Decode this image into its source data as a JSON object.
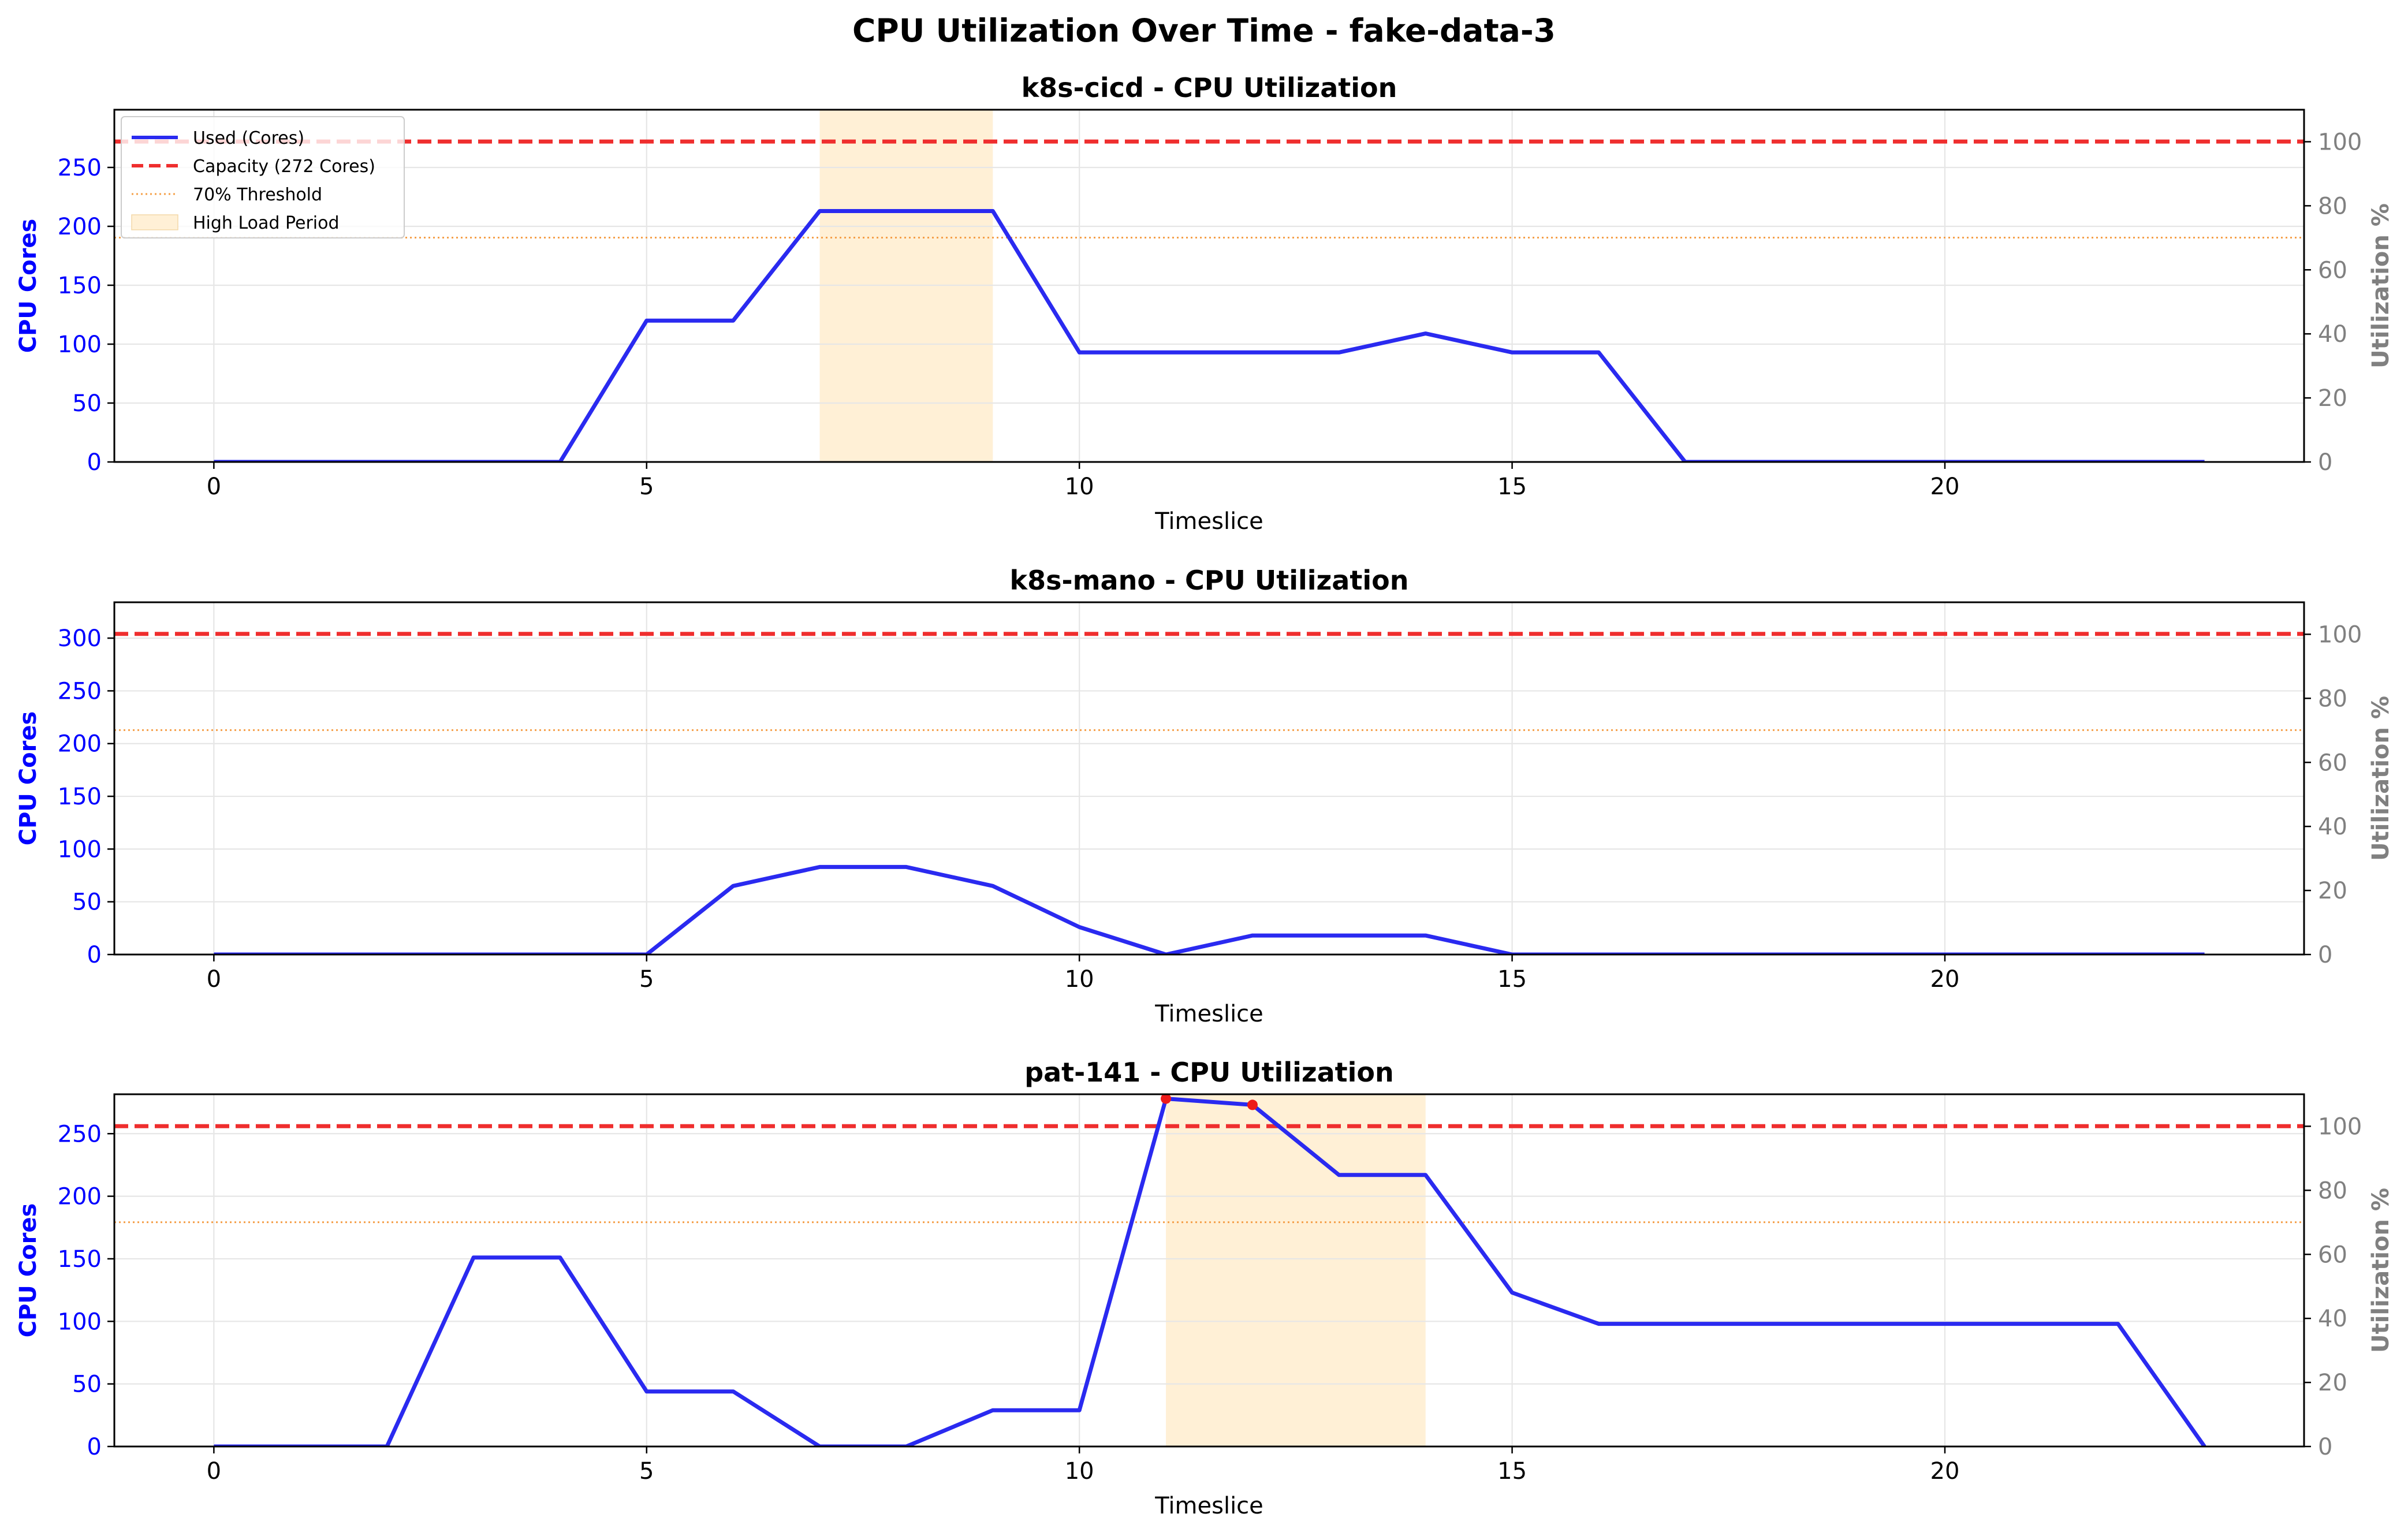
{
  "figure": {
    "suptitle": "CPU Utilization Over Time - fake-data-3"
  },
  "colors": {
    "used": "#2a2af0",
    "capacity": "#ef2e2e",
    "threshold": "#f5a04a",
    "high_load": "#fff0d6",
    "grid": "#e6e6e6",
    "left_axis": "#0000ff",
    "right_axis": "#808080",
    "peak_marker": "#ee1a1a"
  },
  "chart_data": [
    {
      "type": "line",
      "title": "k8s-cicd - CPU Utilization",
      "xlabel": "Timeslice",
      "ylabel": "CPU Cores",
      "ylabel_right": "Utilization %",
      "xlim": [
        -1.15,
        24.15
      ],
      "ylim": [
        0,
        299
      ],
      "ylim_right": [
        0,
        110
      ],
      "xticks": [
        0,
        5,
        10,
        15,
        20
      ],
      "yticks": [
        0,
        50,
        100,
        150,
        200,
        250
      ],
      "yticks_right": [
        0,
        20,
        40,
        60,
        80,
        100
      ],
      "grid": true,
      "x": [
        0,
        1,
        2,
        3,
        4,
        5,
        6,
        7,
        8,
        9,
        10,
        11,
        12,
        13,
        14,
        15,
        16,
        17,
        18,
        19,
        20,
        21,
        22,
        23
      ],
      "series": [
        {
          "name": "Used (Cores)",
          "values": [
            0,
            0,
            0,
            0,
            0,
            120,
            120,
            213,
            213,
            213,
            93,
            93,
            93,
            93,
            109,
            93,
            93,
            0,
            0,
            0,
            0,
            0,
            0,
            0
          ]
        }
      ],
      "capacity": 272,
      "threshold": 190.4,
      "high_load_periods": [
        [
          7,
          9
        ]
      ],
      "peak_markers": [],
      "legend": {
        "position": "upper-left",
        "entries": [
          "Used (Cores)",
          "Capacity (272 Cores)",
          "70% Threshold",
          "High Load Period"
        ]
      }
    },
    {
      "type": "line",
      "title": "k8s-mano - CPU Utilization",
      "xlabel": "Timeslice",
      "ylabel": "CPU Cores",
      "ylabel_right": "Utilization %",
      "xlim": [
        -1.15,
        24.15
      ],
      "ylim": [
        0,
        334
      ],
      "ylim_right": [
        0,
        110
      ],
      "xticks": [
        0,
        5,
        10,
        15,
        20
      ],
      "yticks": [
        0,
        50,
        100,
        150,
        200,
        250,
        300
      ],
      "yticks_right": [
        0,
        20,
        40,
        60,
        80,
        100
      ],
      "grid": true,
      "x": [
        0,
        1,
        2,
        3,
        4,
        5,
        6,
        7,
        8,
        9,
        10,
        11,
        12,
        13,
        14,
        15,
        16,
        17,
        18,
        19,
        20,
        21,
        22,
        23
      ],
      "series": [
        {
          "name": "Used (Cores)",
          "values": [
            0,
            0,
            0,
            0,
            0,
            0,
            65,
            83,
            83,
            65,
            26,
            0,
            18,
            18,
            18,
            0,
            0,
            0,
            0,
            0,
            0,
            0,
            0,
            0
          ]
        }
      ],
      "capacity": 304,
      "threshold": 212.8,
      "high_load_periods": [],
      "peak_markers": []
    },
    {
      "type": "line",
      "title": "pat-141 - CPU Utilization",
      "xlabel": "Timeslice",
      "ylabel": "CPU Cores",
      "ylabel_right": "Utilization %",
      "xlim": [
        -1.15,
        24.15
      ],
      "ylim": [
        0,
        281.5
      ],
      "ylim_right": [
        0,
        110
      ],
      "xticks": [
        0,
        5,
        10,
        15,
        20
      ],
      "yticks": [
        0,
        50,
        100,
        150,
        200,
        250
      ],
      "yticks_right": [
        0,
        20,
        40,
        60,
        80,
        100
      ],
      "grid": true,
      "x": [
        0,
        1,
        2,
        3,
        4,
        5,
        6,
        7,
        8,
        9,
        10,
        11,
        12,
        13,
        14,
        15,
        16,
        17,
        18,
        19,
        20,
        21,
        22,
        23
      ],
      "series": [
        {
          "name": "Used (Cores)",
          "values": [
            0,
            0,
            0,
            151,
            151,
            44,
            44,
            0,
            0,
            29,
            29,
            278,
            273,
            217,
            217,
            123,
            98,
            98,
            98,
            98,
            98,
            98,
            98,
            0
          ]
        }
      ],
      "capacity": 256,
      "threshold": 179.2,
      "high_load_periods": [
        [
          11,
          14
        ]
      ],
      "peak_markers": [
        [
          11,
          278
        ],
        [
          12,
          273
        ]
      ]
    }
  ]
}
